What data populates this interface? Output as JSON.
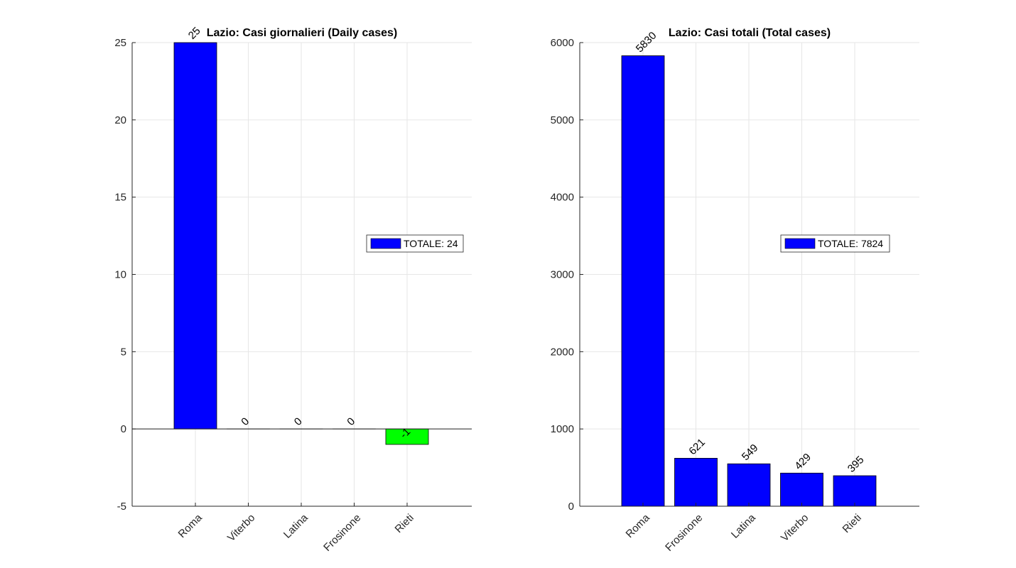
{
  "chart_data": [
    {
      "type": "bar",
      "title": "Lazio: Casi giornalieri (Daily cases)",
      "categories": [
        "Roma",
        "Viterbo",
        "Latina",
        "Frosinone",
        "Rieti"
      ],
      "values": [
        25,
        0,
        0,
        0,
        -1
      ],
      "data_labels": [
        "25",
        "0",
        "0",
        "0",
        "-1"
      ],
      "bar_colors": [
        "#0000ff",
        "#0000ff",
        "#0000ff",
        "#0000ff",
        "#00ff00"
      ],
      "ylim": [
        -5,
        25
      ],
      "yticks": [
        -5,
        0,
        5,
        10,
        15,
        20,
        25
      ],
      "grid": true,
      "legend": {
        "label": "TOTALE: 24",
        "color": "#0000ff",
        "placement": "right"
      }
    },
    {
      "type": "bar",
      "title": "Lazio: Casi totali (Total cases)",
      "categories": [
        "Roma",
        "Frosinone",
        "Latina",
        "Viterbo",
        "Rieti"
      ],
      "values": [
        5830,
        621,
        549,
        429,
        395
      ],
      "data_labels": [
        "5830",
        "621",
        "549",
        "429",
        "395"
      ],
      "bar_colors": [
        "#0000ff",
        "#0000ff",
        "#0000ff",
        "#0000ff",
        "#0000ff"
      ],
      "ylim": [
        0,
        6000
      ],
      "yticks": [
        0,
        1000,
        2000,
        3000,
        4000,
        5000,
        6000
      ],
      "grid": true,
      "legend": {
        "label": "TOTALE: 7824",
        "color": "#0000ff",
        "placement": "right"
      }
    }
  ]
}
